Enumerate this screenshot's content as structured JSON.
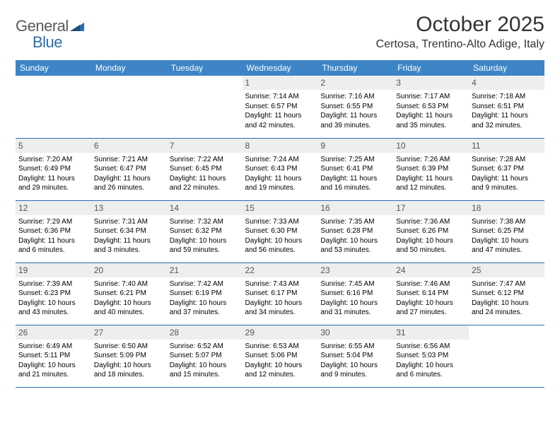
{
  "logo": {
    "general": "General",
    "blue": "Blue"
  },
  "title": "October 2025",
  "location": "Certosa, Trentino-Alto Adige, Italy",
  "header_bg": "#3d85c6",
  "border_color": "#2b6cb0",
  "daynum_bg": "#eeeeee",
  "weekdays": [
    "Sunday",
    "Monday",
    "Tuesday",
    "Wednesday",
    "Thursday",
    "Friday",
    "Saturday"
  ],
  "weeks": [
    [
      {
        "day": "",
        "sunrise": "",
        "sunset": "",
        "daylight": ""
      },
      {
        "day": "",
        "sunrise": "",
        "sunset": "",
        "daylight": ""
      },
      {
        "day": "",
        "sunrise": "",
        "sunset": "",
        "daylight": ""
      },
      {
        "day": "1",
        "sunrise": "Sunrise: 7:14 AM",
        "sunset": "Sunset: 6:57 PM",
        "daylight": "Daylight: 11 hours and 42 minutes."
      },
      {
        "day": "2",
        "sunrise": "Sunrise: 7:16 AM",
        "sunset": "Sunset: 6:55 PM",
        "daylight": "Daylight: 11 hours and 39 minutes."
      },
      {
        "day": "3",
        "sunrise": "Sunrise: 7:17 AM",
        "sunset": "Sunset: 6:53 PM",
        "daylight": "Daylight: 11 hours and 35 minutes."
      },
      {
        "day": "4",
        "sunrise": "Sunrise: 7:18 AM",
        "sunset": "Sunset: 6:51 PM",
        "daylight": "Daylight: 11 hours and 32 minutes."
      }
    ],
    [
      {
        "day": "5",
        "sunrise": "Sunrise: 7:20 AM",
        "sunset": "Sunset: 6:49 PM",
        "daylight": "Daylight: 11 hours and 29 minutes."
      },
      {
        "day": "6",
        "sunrise": "Sunrise: 7:21 AM",
        "sunset": "Sunset: 6:47 PM",
        "daylight": "Daylight: 11 hours and 26 minutes."
      },
      {
        "day": "7",
        "sunrise": "Sunrise: 7:22 AM",
        "sunset": "Sunset: 6:45 PM",
        "daylight": "Daylight: 11 hours and 22 minutes."
      },
      {
        "day": "8",
        "sunrise": "Sunrise: 7:24 AM",
        "sunset": "Sunset: 6:43 PM",
        "daylight": "Daylight: 11 hours and 19 minutes."
      },
      {
        "day": "9",
        "sunrise": "Sunrise: 7:25 AM",
        "sunset": "Sunset: 6:41 PM",
        "daylight": "Daylight: 11 hours and 16 minutes."
      },
      {
        "day": "10",
        "sunrise": "Sunrise: 7:26 AM",
        "sunset": "Sunset: 6:39 PM",
        "daylight": "Daylight: 11 hours and 12 minutes."
      },
      {
        "day": "11",
        "sunrise": "Sunrise: 7:28 AM",
        "sunset": "Sunset: 6:37 PM",
        "daylight": "Daylight: 11 hours and 9 minutes."
      }
    ],
    [
      {
        "day": "12",
        "sunrise": "Sunrise: 7:29 AM",
        "sunset": "Sunset: 6:36 PM",
        "daylight": "Daylight: 11 hours and 6 minutes."
      },
      {
        "day": "13",
        "sunrise": "Sunrise: 7:31 AM",
        "sunset": "Sunset: 6:34 PM",
        "daylight": "Daylight: 11 hours and 3 minutes."
      },
      {
        "day": "14",
        "sunrise": "Sunrise: 7:32 AM",
        "sunset": "Sunset: 6:32 PM",
        "daylight": "Daylight: 10 hours and 59 minutes."
      },
      {
        "day": "15",
        "sunrise": "Sunrise: 7:33 AM",
        "sunset": "Sunset: 6:30 PM",
        "daylight": "Daylight: 10 hours and 56 minutes."
      },
      {
        "day": "16",
        "sunrise": "Sunrise: 7:35 AM",
        "sunset": "Sunset: 6:28 PM",
        "daylight": "Daylight: 10 hours and 53 minutes."
      },
      {
        "day": "17",
        "sunrise": "Sunrise: 7:36 AM",
        "sunset": "Sunset: 6:26 PM",
        "daylight": "Daylight: 10 hours and 50 minutes."
      },
      {
        "day": "18",
        "sunrise": "Sunrise: 7:38 AM",
        "sunset": "Sunset: 6:25 PM",
        "daylight": "Daylight: 10 hours and 47 minutes."
      }
    ],
    [
      {
        "day": "19",
        "sunrise": "Sunrise: 7:39 AM",
        "sunset": "Sunset: 6:23 PM",
        "daylight": "Daylight: 10 hours and 43 minutes."
      },
      {
        "day": "20",
        "sunrise": "Sunrise: 7:40 AM",
        "sunset": "Sunset: 6:21 PM",
        "daylight": "Daylight: 10 hours and 40 minutes."
      },
      {
        "day": "21",
        "sunrise": "Sunrise: 7:42 AM",
        "sunset": "Sunset: 6:19 PM",
        "daylight": "Daylight: 10 hours and 37 minutes."
      },
      {
        "day": "22",
        "sunrise": "Sunrise: 7:43 AM",
        "sunset": "Sunset: 6:17 PM",
        "daylight": "Daylight: 10 hours and 34 minutes."
      },
      {
        "day": "23",
        "sunrise": "Sunrise: 7:45 AM",
        "sunset": "Sunset: 6:16 PM",
        "daylight": "Daylight: 10 hours and 31 minutes."
      },
      {
        "day": "24",
        "sunrise": "Sunrise: 7:46 AM",
        "sunset": "Sunset: 6:14 PM",
        "daylight": "Daylight: 10 hours and 27 minutes."
      },
      {
        "day": "25",
        "sunrise": "Sunrise: 7:47 AM",
        "sunset": "Sunset: 6:12 PM",
        "daylight": "Daylight: 10 hours and 24 minutes."
      }
    ],
    [
      {
        "day": "26",
        "sunrise": "Sunrise: 6:49 AM",
        "sunset": "Sunset: 5:11 PM",
        "daylight": "Daylight: 10 hours and 21 minutes."
      },
      {
        "day": "27",
        "sunrise": "Sunrise: 6:50 AM",
        "sunset": "Sunset: 5:09 PM",
        "daylight": "Daylight: 10 hours and 18 minutes."
      },
      {
        "day": "28",
        "sunrise": "Sunrise: 6:52 AM",
        "sunset": "Sunset: 5:07 PM",
        "daylight": "Daylight: 10 hours and 15 minutes."
      },
      {
        "day": "29",
        "sunrise": "Sunrise: 6:53 AM",
        "sunset": "Sunset: 5:06 PM",
        "daylight": "Daylight: 10 hours and 12 minutes."
      },
      {
        "day": "30",
        "sunrise": "Sunrise: 6:55 AM",
        "sunset": "Sunset: 5:04 PM",
        "daylight": "Daylight: 10 hours and 9 minutes."
      },
      {
        "day": "31",
        "sunrise": "Sunrise: 6:56 AM",
        "sunset": "Sunset: 5:03 PM",
        "daylight": "Daylight: 10 hours and 6 minutes."
      },
      {
        "day": "",
        "sunrise": "",
        "sunset": "",
        "daylight": ""
      }
    ]
  ]
}
